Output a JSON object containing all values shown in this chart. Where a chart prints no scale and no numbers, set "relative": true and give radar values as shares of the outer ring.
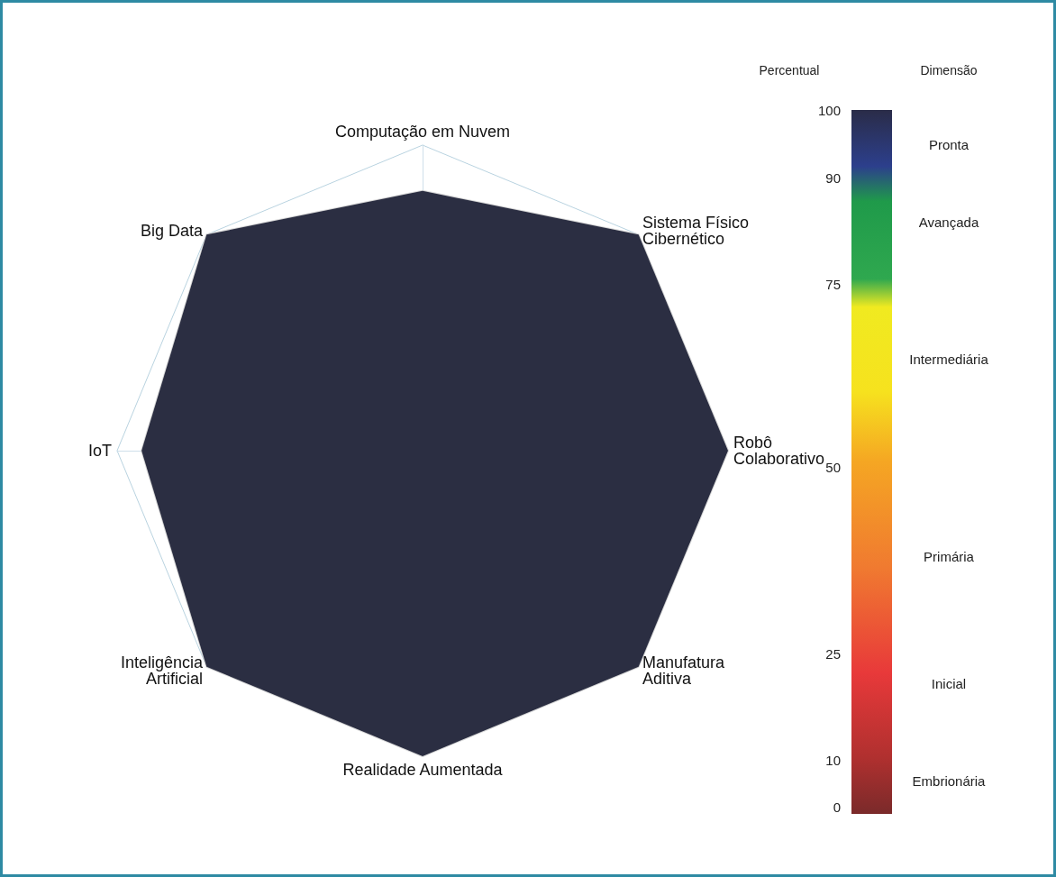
{
  "chart_data": [
    {
      "type": "radar",
      "relative": true,
      "categories": [
        "Computação em Nuvem",
        "Sistema Físico\nCibernético",
        "Robô\nColaborativo",
        "Manufatura\nAditiva",
        "Realidade Aumentada",
        "Inteligência\nArtificial",
        "IoT",
        "Big Data"
      ],
      "series": [
        {
          "color": "#2b2e42",
          "values": [
            0.85,
            1,
            1,
            1,
            1,
            1,
            0.92,
            1
          ]
        }
      ]
    },
    {
      "type": "other",
      "annotations": [
        "Percentual",
        "Dimensão",
        "100",
        "Pronta",
        "90",
        "Avançada",
        "75",
        "Intermediária",
        "50",
        "Primária",
        "25",
        "Inicial",
        "10",
        "Embrionária",
        "0"
      ]
    }
  ]
}
